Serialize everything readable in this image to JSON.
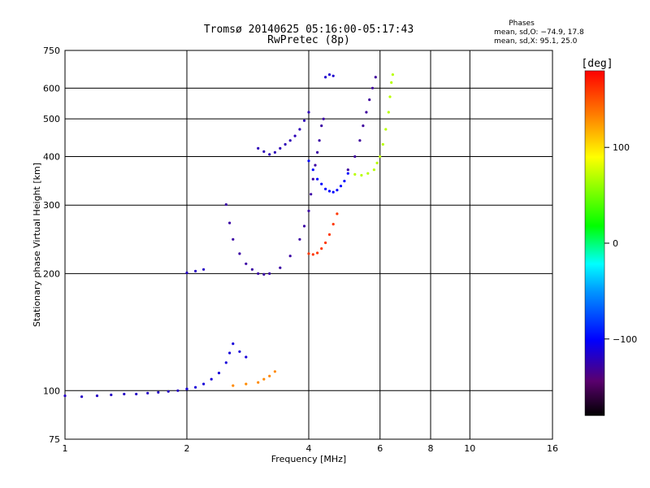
{
  "chart_data": {
    "type": "scatter",
    "title": "Tromsø 20140625 05:16:00-05:17:43",
    "subtitle": "RwPretec (8p)",
    "xlabel": "Frequency [MHz]",
    "ylabel": "Stationary phase Virtual Height [km]",
    "x_scale": "log",
    "y_scale": "log",
    "xlim": [
      1,
      16
    ],
    "ylim": [
      75,
      750
    ],
    "x_ticks": [
      "1",
      "2",
      "4",
      "6",
      "8",
      "10",
      "16"
    ],
    "x_tick_values": [
      1,
      2,
      4,
      6,
      8,
      10,
      16
    ],
    "y_ticks": [
      "75",
      "100",
      "200",
      "300",
      "400",
      "500",
      "600",
      "750"
    ],
    "y_tick_values": [
      75,
      100,
      200,
      300,
      400,
      500,
      600,
      750
    ],
    "grid": true,
    "stats": {
      "heading": "Phases",
      "line_o": "mean, sd,O: −74.9, 17.8",
      "line_x": "mean, sd,X:  95.1, 25.0"
    },
    "colorbar": {
      "label": "[deg]",
      "range": [
        -180,
        180
      ],
      "ticks": [
        "100",
        "0",
        "−100"
      ],
      "tick_values": [
        100,
        0,
        -100
      ]
    },
    "traces": [
      {
        "phase": -118,
        "points": [
          [
            1.0,
            97
          ],
          [
            1.1,
            96.5
          ],
          [
            1.2,
            97
          ],
          [
            1.3,
            97.5
          ],
          [
            1.4,
            98
          ],
          [
            1.5,
            98
          ],
          [
            1.6,
            98.5
          ],
          [
            1.7,
            99
          ],
          [
            1.8,
            99.5
          ],
          [
            1.9,
            100
          ],
          [
            2.0,
            101
          ]
        ]
      },
      {
        "phase": -112,
        "points": [
          [
            2.0,
            101
          ],
          [
            2.1,
            102
          ],
          [
            2.2,
            104
          ],
          [
            2.3,
            107
          ],
          [
            2.4,
            111
          ],
          [
            2.5,
            118
          ],
          [
            2.55,
            125
          ],
          [
            2.6,
            132
          ],
          [
            2.7,
            126
          ],
          [
            2.8,
            122
          ]
        ]
      },
      {
        "phase": -118,
        "points": [
          [
            2.0,
            201
          ],
          [
            2.1,
            203
          ],
          [
            2.2,
            205
          ]
        ]
      },
      {
        "phase": -128,
        "points": [
          [
            2.5,
            301
          ],
          [
            2.55,
            270
          ],
          [
            2.6,
            245
          ],
          [
            2.7,
            225
          ],
          [
            2.8,
            212
          ],
          [
            2.9,
            205
          ],
          [
            3.0,
            200
          ],
          [
            3.1,
            199
          ],
          [
            3.2,
            200
          ],
          [
            3.4,
            207
          ],
          [
            3.6,
            222
          ],
          [
            3.8,
            245
          ],
          [
            3.9,
            265
          ],
          [
            4.0,
            290
          ],
          [
            4.05,
            320
          ],
          [
            4.1,
            350
          ],
          [
            4.15,
            380
          ],
          [
            4.2,
            410
          ],
          [
            4.25,
            440
          ],
          [
            4.3,
            480
          ],
          [
            4.35,
            500
          ]
        ]
      },
      {
        "phase": -122,
        "points": [
          [
            3.0,
            420
          ],
          [
            3.1,
            412
          ],
          [
            3.2,
            405
          ],
          [
            3.3,
            410
          ],
          [
            3.4,
            420
          ],
          [
            3.5,
            430
          ],
          [
            3.6,
            440
          ],
          [
            3.7,
            452
          ],
          [
            3.8,
            470
          ],
          [
            3.9,
            495
          ],
          [
            4.0,
            520
          ]
        ]
      },
      {
        "phase": -100,
        "points": [
          [
            4.0,
            390
          ],
          [
            4.1,
            370
          ],
          [
            4.2,
            350
          ],
          [
            4.3,
            340
          ],
          [
            4.4,
            330
          ],
          [
            4.5,
            326
          ],
          [
            4.6,
            324
          ],
          [
            4.7,
            328
          ],
          [
            4.8,
            336
          ],
          [
            4.9,
            346
          ],
          [
            5.0,
            362
          ]
        ]
      },
      {
        "phase": -130,
        "points": [
          [
            5.0,
            370
          ],
          [
            5.2,
            400
          ],
          [
            5.35,
            440
          ],
          [
            5.45,
            480
          ],
          [
            5.55,
            520
          ],
          [
            5.65,
            560
          ],
          [
            5.75,
            600
          ],
          [
            5.85,
            640
          ]
        ]
      },
      {
        "phase": -115,
        "points": [
          [
            4.4,
            640
          ],
          [
            4.5,
            650
          ],
          [
            4.6,
            645
          ]
        ]
      },
      {
        "phase": 70,
        "points": [
          [
            5.2,
            360
          ],
          [
            5.4,
            358
          ],
          [
            5.6,
            362
          ],
          [
            5.8,
            370
          ],
          [
            5.9,
            385
          ],
          [
            6.0,
            400
          ],
          [
            6.1,
            430
          ],
          [
            6.2,
            470
          ],
          [
            6.3,
            520
          ],
          [
            6.35,
            570
          ],
          [
            6.4,
            620
          ],
          [
            6.45,
            650
          ]
        ]
      },
      {
        "phase": 160,
        "points": [
          [
            4.0,
            225
          ],
          [
            4.1,
            224
          ],
          [
            4.2,
            226
          ],
          [
            4.3,
            232
          ],
          [
            4.4,
            240
          ],
          [
            4.5,
            252
          ],
          [
            4.6,
            268
          ],
          [
            4.7,
            285
          ]
        ]
      },
      {
        "phase": 130,
        "points": [
          [
            2.6,
            103
          ],
          [
            2.8,
            104
          ],
          [
            3.0,
            105
          ],
          [
            3.1,
            107
          ],
          [
            3.2,
            109
          ],
          [
            3.3,
            112
          ]
        ]
      }
    ]
  }
}
